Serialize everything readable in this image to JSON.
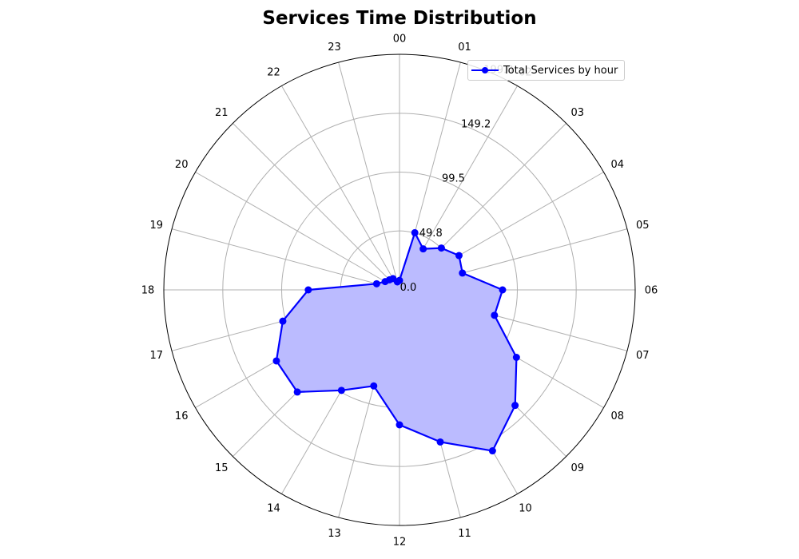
{
  "chart_data": {
    "type": "radar",
    "title": "Services Time Distribution",
    "categories": [
      "00",
      "01",
      "02",
      "03",
      "04",
      "05",
      "06",
      "07",
      "08",
      "09",
      "10",
      "11",
      "12",
      "13",
      "14",
      "15",
      "16",
      "17",
      "18",
      "19",
      "20",
      "21",
      "22",
      "23"
    ],
    "radial_ticks": [
      0.0,
      49.8,
      99.5,
      149.2,
      199.0
    ],
    "radial_tick_labels": [
      "0.0",
      "49.8",
      "99.5",
      "149.2",
      "199.0"
    ],
    "rlim": [
      0,
      199.0
    ],
    "grid": true,
    "legend_position": "top-right",
    "series": [
      {
        "name": "Total Services by hour",
        "color": "#0000ff",
        "fill_color": "#bbbbff",
        "values": [
          8,
          50,
          40,
          50,
          58,
          55,
          87,
          83,
          114,
          138,
          157,
          133,
          114,
          84,
          98,
          122,
          120,
          102,
          77,
          20,
          14,
          12,
          11,
          7
        ]
      }
    ]
  }
}
